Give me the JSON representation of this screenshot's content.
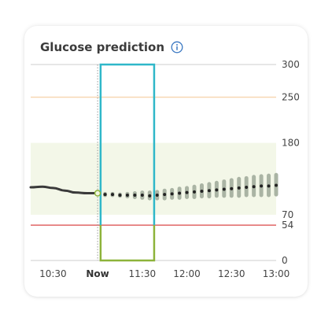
{
  "card": {
    "title": "Glucose prediction",
    "info_icon": "info-circle-icon"
  },
  "colors": {
    "target_band": "#f3f7e8",
    "high_line": "#f7d8b3",
    "low_line": "#e06666",
    "axis_line": "#cccccc",
    "history_line": "#3a3a3a",
    "prediction_dot": "#222222",
    "prediction_band": "#aab4a4",
    "now_marker": "#8db33a",
    "highlight_top": "#2fb7c9",
    "highlight_bottom": "#8db33a",
    "info_blue": "#3a78c2"
  },
  "chart_data": {
    "type": "line",
    "title": "Glucose prediction",
    "y_ticks": [
      0,
      54,
      70,
      180,
      250,
      300
    ],
    "y_range": [
      0,
      300
    ],
    "x_ticks": [
      {
        "label": "10:30",
        "time": "10:30",
        "bold": false
      },
      {
        "label": "Now",
        "time": "11:00",
        "bold": true
      },
      {
        "label": "11:30",
        "time": "11:30",
        "bold": false
      },
      {
        "label": "12:00",
        "time": "12:00",
        "bold": false
      },
      {
        "label": "12:30",
        "time": "12:30",
        "bold": false
      },
      {
        "label": "13:00",
        "time": "13:00",
        "bold": false
      }
    ],
    "x_range": [
      "10:15",
      "13:00"
    ],
    "target_range": [
      70,
      180
    ],
    "high_threshold": 250,
    "low_threshold": 54,
    "now_time": "11:00",
    "highlight_window": [
      "11:02",
      "11:38"
    ],
    "history": [
      {
        "t": "10:15",
        "v": 112
      },
      {
        "t": "10:23",
        "v": 113
      },
      {
        "t": "10:30",
        "v": 111
      },
      {
        "t": "10:38",
        "v": 107
      },
      {
        "t": "10:45",
        "v": 104
      },
      {
        "t": "10:53",
        "v": 103
      },
      {
        "t": "11:00",
        "v": 103
      }
    ],
    "prediction": [
      {
        "t": "11:05",
        "v": 101,
        "lo": 100,
        "hi": 102
      },
      {
        "t": "11:10",
        "v": 101,
        "lo": 100,
        "hi": 102
      },
      {
        "t": "11:15",
        "v": 100,
        "lo": 99,
        "hi": 101
      },
      {
        "t": "11:20",
        "v": 100,
        "lo": 98,
        "hi": 102
      },
      {
        "t": "11:25",
        "v": 100,
        "lo": 97,
        "hi": 103
      },
      {
        "t": "11:30",
        "v": 100,
        "lo": 96,
        "hi": 104
      },
      {
        "t": "11:35",
        "v": 99,
        "lo": 95,
        "hi": 104
      },
      {
        "t": "11:40",
        "v": 100,
        "lo": 95,
        "hi": 105
      },
      {
        "t": "11:45",
        "v": 101,
        "lo": 95,
        "hi": 107
      },
      {
        "t": "11:50",
        "v": 102,
        "lo": 96,
        "hi": 108
      },
      {
        "t": "11:55",
        "v": 103,
        "lo": 96,
        "hi": 110
      },
      {
        "t": "12:00",
        "v": 104,
        "lo": 97,
        "hi": 111
      },
      {
        "t": "12:05",
        "v": 105,
        "lo": 97,
        "hi": 113
      },
      {
        "t": "12:10",
        "v": 106,
        "lo": 98,
        "hi": 115
      },
      {
        "t": "12:15",
        "v": 107,
        "lo": 98,
        "hi": 117
      },
      {
        "t": "12:20",
        "v": 108,
        "lo": 99,
        "hi": 119
      },
      {
        "t": "12:25",
        "v": 109,
        "lo": 99,
        "hi": 121
      },
      {
        "t": "12:30",
        "v": 110,
        "lo": 99,
        "hi": 123
      },
      {
        "t": "12:35",
        "v": 111,
        "lo": 99,
        "hi": 125
      },
      {
        "t": "12:40",
        "v": 112,
        "lo": 100,
        "hi": 126
      },
      {
        "t": "12:45",
        "v": 113,
        "lo": 100,
        "hi": 128
      },
      {
        "t": "12:50",
        "v": 114,
        "lo": 100,
        "hi": 129
      },
      {
        "t": "12:55",
        "v": 114,
        "lo": 100,
        "hi": 130
      },
      {
        "t": "13:00",
        "v": 115,
        "lo": 101,
        "hi": 131
      }
    ]
  }
}
